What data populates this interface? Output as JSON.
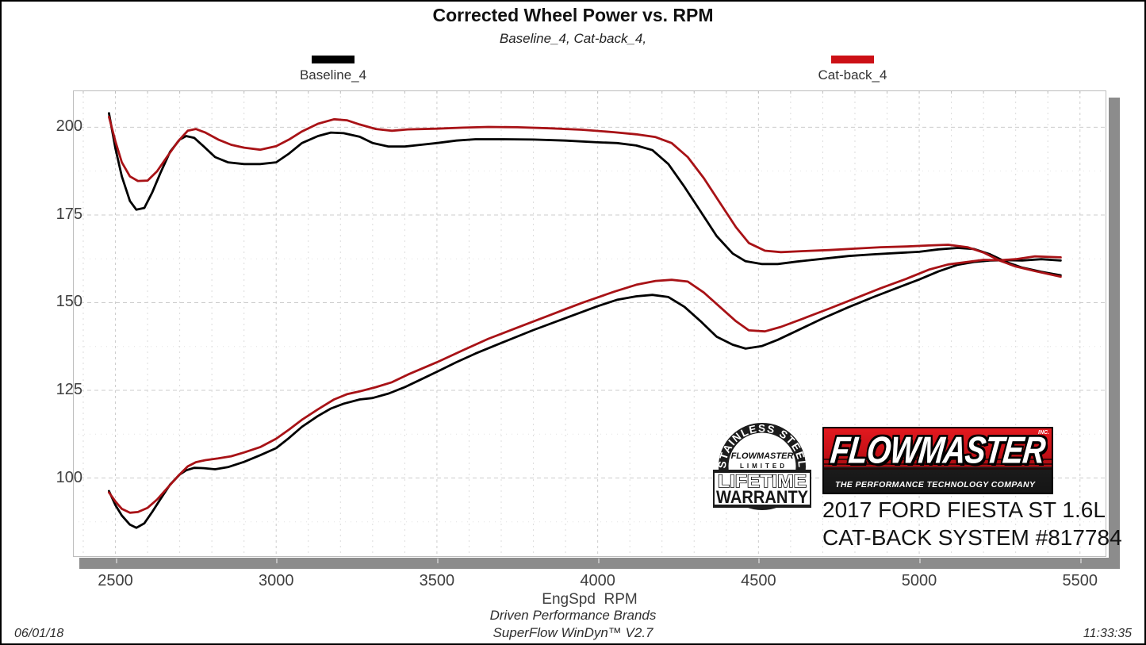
{
  "page": {
    "title": "Corrected Wheel Power vs. RPM",
    "subtitle": "Baseline_4, Cat-back_4,",
    "footer_brand": "Driven Performance Brands",
    "footer_software": "SuperFlow WinDyn™ V2.7",
    "date": "06/01/18",
    "time": "11:33:35",
    "x_axis_title": "EngSpd  RPM"
  },
  "legend": [
    {
      "label": "Baseline_4",
      "color": "#000000"
    },
    {
      "label": "Cat-back_4",
      "color": "#cc1016"
    }
  ],
  "branding": {
    "badge": {
      "arc_text": "STAINLESS STEEL",
      "brand": "FLOWMASTER",
      "limited": "LIMITED",
      "banner_line1": "LIFETIME",
      "banner_line2": "WARRANTY"
    },
    "logo": {
      "wordmark": "FLOWMASTER",
      "inc": "INC.",
      "tagline": "THE PERFORMANCE TECHNOLOGY COMPANY",
      "red": "#cc1016"
    },
    "vehicle_line1": "2017 FORD FIESTA ST 1.6L",
    "vehicle_line2": "CAT-BACK SYSTEM #817784"
  },
  "chart_data": {
    "type": "line",
    "title": "Corrected Wheel Power vs. RPM",
    "xlabel": "EngSpd  RPM",
    "ylabel": "",
    "xlim": [
      2368,
      5582
    ],
    "ylim": [
      77.5,
      210.5
    ],
    "x_ticks": [
      2500,
      3000,
      3500,
      4000,
      4500,
      5000,
      5500
    ],
    "y_ticks": [
      100,
      125,
      150,
      175,
      200
    ],
    "grid": "dashed, minor verticals every 100 RPM, minor horizontals every 12.5",
    "legend_position": "top",
    "series": [
      {
        "name": "Baseline_4 torque",
        "color": "#000000",
        "points": [
          [
            2480,
            204
          ],
          [
            2500,
            194
          ],
          [
            2520,
            186
          ],
          [
            2545,
            179
          ],
          [
            2565,
            176.5
          ],
          [
            2590,
            177
          ],
          [
            2615,
            181.5
          ],
          [
            2640,
            187
          ],
          [
            2670,
            193
          ],
          [
            2700,
            196.5
          ],
          [
            2720,
            197.5
          ],
          [
            2745,
            197
          ],
          [
            2775,
            194.5
          ],
          [
            2810,
            191.5
          ],
          [
            2850,
            190
          ],
          [
            2900,
            189.5
          ],
          [
            2950,
            189.5
          ],
          [
            3000,
            190
          ],
          [
            3040,
            192.5
          ],
          [
            3080,
            195.5
          ],
          [
            3130,
            197.5
          ],
          [
            3170,
            198.5
          ],
          [
            3210,
            198.3
          ],
          [
            3260,
            197.3
          ],
          [
            3300,
            195.5
          ],
          [
            3350,
            194.5
          ],
          [
            3400,
            194.5
          ],
          [
            3450,
            195
          ],
          [
            3500,
            195.5
          ],
          [
            3560,
            196.2
          ],
          [
            3620,
            196.6
          ],
          [
            3700,
            196.6
          ],
          [
            3800,
            196.5
          ],
          [
            3900,
            196.2
          ],
          [
            4000,
            195.7
          ],
          [
            4060,
            195.5
          ],
          [
            4120,
            194.8
          ],
          [
            4170,
            193.5
          ],
          [
            4220,
            189.5
          ],
          [
            4270,
            183
          ],
          [
            4320,
            176
          ],
          [
            4370,
            169
          ],
          [
            4420,
            164
          ],
          [
            4460,
            161.8
          ],
          [
            4510,
            161
          ],
          [
            4560,
            161
          ],
          [
            4620,
            161.7
          ],
          [
            4700,
            162.5
          ],
          [
            4780,
            163.3
          ],
          [
            4860,
            163.8
          ],
          [
            4940,
            164.2
          ],
          [
            5000,
            164.5
          ],
          [
            5060,
            165.2
          ],
          [
            5120,
            165.6
          ],
          [
            5170,
            165.3
          ],
          [
            5220,
            163.8
          ],
          [
            5270,
            161.6
          ],
          [
            5320,
            160
          ],
          [
            5380,
            158.8
          ],
          [
            5440,
            157.8
          ]
        ]
      },
      {
        "name": "Baseline_4 power",
        "color": "#000000",
        "points": [
          [
            2480,
            96.3
          ],
          [
            2500,
            92.3
          ],
          [
            2520,
            89.3
          ],
          [
            2545,
            86.7
          ],
          [
            2565,
            85.8
          ],
          [
            2590,
            87.1
          ],
          [
            2615,
            90.4
          ],
          [
            2640,
            94
          ],
          [
            2670,
            98.1
          ],
          [
            2700,
            101
          ],
          [
            2720,
            102.2
          ],
          [
            2745,
            102.9
          ],
          [
            2775,
            102.8
          ],
          [
            2810,
            102.5
          ],
          [
            2850,
            103.1
          ],
          [
            2900,
            104.6
          ],
          [
            2950,
            106.5
          ],
          [
            3000,
            108.5
          ],
          [
            3040,
            111.4
          ],
          [
            3080,
            114.6
          ],
          [
            3130,
            117.7
          ],
          [
            3170,
            119.8
          ],
          [
            3210,
            121.2
          ],
          [
            3260,
            122.4
          ],
          [
            3300,
            122.8
          ],
          [
            3350,
            124.1
          ],
          [
            3400,
            125.9
          ],
          [
            3450,
            128.1
          ],
          [
            3500,
            130.3
          ],
          [
            3560,
            133
          ],
          [
            3620,
            135.5
          ],
          [
            3700,
            138.5
          ],
          [
            3800,
            142.2
          ],
          [
            3900,
            145.6
          ],
          [
            4000,
            149
          ],
          [
            4060,
            150.8
          ],
          [
            4120,
            151.8
          ],
          [
            4170,
            152.2
          ],
          [
            4220,
            151.6
          ],
          [
            4270,
            148.8
          ],
          [
            4320,
            144.7
          ],
          [
            4370,
            140.3
          ],
          [
            4420,
            138
          ],
          [
            4460,
            136.9
          ],
          [
            4510,
            137.6
          ],
          [
            4560,
            139.4
          ],
          [
            4620,
            142
          ],
          [
            4700,
            145.5
          ],
          [
            4780,
            148.7
          ],
          [
            4860,
            151.7
          ],
          [
            4940,
            154.5
          ],
          [
            5000,
            156.6
          ],
          [
            5060,
            158.9
          ],
          [
            5120,
            160.8
          ],
          [
            5170,
            161.6
          ],
          [
            5220,
            162
          ],
          [
            5270,
            162.1
          ],
          [
            5320,
            162
          ],
          [
            5380,
            162.4
          ],
          [
            5440,
            162
          ]
        ]
      },
      {
        "name": "Cat-back_4 torque",
        "color": "#a81216",
        "points": [
          [
            2480,
            203
          ],
          [
            2500,
            196
          ],
          [
            2520,
            190
          ],
          [
            2545,
            186
          ],
          [
            2570,
            184.7
          ],
          [
            2600,
            184.8
          ],
          [
            2630,
            187.5
          ],
          [
            2660,
            191.5
          ],
          [
            2695,
            196
          ],
          [
            2725,
            199
          ],
          [
            2750,
            199.5
          ],
          [
            2780,
            198.5
          ],
          [
            2820,
            196.5
          ],
          [
            2860,
            195
          ],
          [
            2900,
            194.2
          ],
          [
            2950,
            193.6
          ],
          [
            3000,
            194.6
          ],
          [
            3040,
            196.5
          ],
          [
            3080,
            198.8
          ],
          [
            3130,
            201
          ],
          [
            3180,
            202.3
          ],
          [
            3220,
            202
          ],
          [
            3260,
            200.8
          ],
          [
            3310,
            199.5
          ],
          [
            3360,
            199
          ],
          [
            3410,
            199.4
          ],
          [
            3500,
            199.6
          ],
          [
            3580,
            199.9
          ],
          [
            3660,
            200.1
          ],
          [
            3750,
            200
          ],
          [
            3850,
            199.7
          ],
          [
            3950,
            199.3
          ],
          [
            4050,
            198.6
          ],
          [
            4120,
            198
          ],
          [
            4180,
            197.2
          ],
          [
            4230,
            195.5
          ],
          [
            4280,
            191.5
          ],
          [
            4330,
            185.5
          ],
          [
            4380,
            178.5
          ],
          [
            4430,
            171.5
          ],
          [
            4470,
            167
          ],
          [
            4520,
            164.8
          ],
          [
            4570,
            164.4
          ],
          [
            4640,
            164.7
          ],
          [
            4720,
            165
          ],
          [
            4800,
            165.4
          ],
          [
            4880,
            165.8
          ],
          [
            4960,
            166
          ],
          [
            5030,
            166.3
          ],
          [
            5090,
            166.5
          ],
          [
            5150,
            165.8
          ],
          [
            5200,
            164.3
          ],
          [
            5250,
            162
          ],
          [
            5300,
            160.3
          ],
          [
            5360,
            159
          ],
          [
            5440,
            157.4
          ]
        ]
      },
      {
        "name": "Cat-back_4 power",
        "color": "#a81216",
        "points": [
          [
            2480,
            95.9
          ],
          [
            2500,
            93.3
          ],
          [
            2520,
            91.2
          ],
          [
            2545,
            90.1
          ],
          [
            2570,
            90.3
          ],
          [
            2600,
            91.5
          ],
          [
            2630,
            93.9
          ],
          [
            2660,
            97
          ],
          [
            2695,
            100.6
          ],
          [
            2725,
            103.3
          ],
          [
            2750,
            104.5
          ],
          [
            2780,
            105.1
          ],
          [
            2820,
            105.6
          ],
          [
            2860,
            106.2
          ],
          [
            2900,
            107.3
          ],
          [
            2950,
            108.8
          ],
          [
            3000,
            111.2
          ],
          [
            3040,
            113.8
          ],
          [
            3080,
            116.6
          ],
          [
            3130,
            119.6
          ],
          [
            3180,
            122.4
          ],
          [
            3220,
            123.9
          ],
          [
            3260,
            124.7
          ],
          [
            3310,
            125.9
          ],
          [
            3360,
            127.3
          ],
          [
            3410,
            129.5
          ],
          [
            3500,
            133
          ],
          [
            3580,
            136.4
          ],
          [
            3660,
            139.7
          ],
          [
            3750,
            142.9
          ],
          [
            3850,
            146.4
          ],
          [
            3950,
            149.9
          ],
          [
            4050,
            153.1
          ],
          [
            4120,
            155.1
          ],
          [
            4180,
            156.2
          ],
          [
            4230,
            156.5
          ],
          [
            4280,
            156
          ],
          [
            4330,
            152.9
          ],
          [
            4380,
            148.8
          ],
          [
            4430,
            144.7
          ],
          [
            4470,
            142.1
          ],
          [
            4520,
            141.8
          ],
          [
            4570,
            143.1
          ],
          [
            4640,
            145.5
          ],
          [
            4720,
            148.3
          ],
          [
            4800,
            151.2
          ],
          [
            4880,
            154.1
          ],
          [
            4960,
            156.8
          ],
          [
            5030,
            159.4
          ],
          [
            5090,
            160.9
          ],
          [
            5150,
            161.6
          ],
          [
            5200,
            162.2
          ],
          [
            5250,
            162.1
          ],
          [
            5300,
            162.4
          ],
          [
            5360,
            163.2
          ],
          [
            5440,
            162.9
          ]
        ]
      }
    ]
  }
}
